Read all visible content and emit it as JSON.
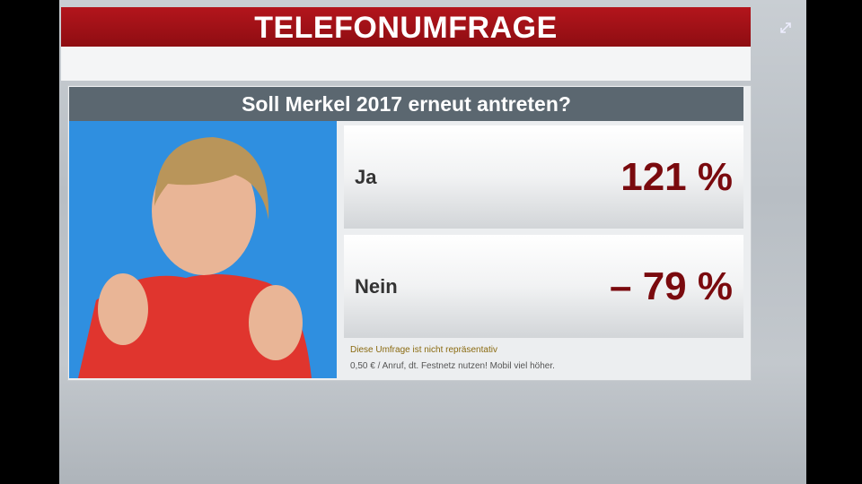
{
  "header": {
    "title": "TELEFONUMFRAGE"
  },
  "question": "Soll Merkel 2017 erneut antreten?",
  "rows": [
    {
      "label": "Ja",
      "value": "121 %"
    },
    {
      "label": "Nein",
      "value": "– 79 %"
    }
  ],
  "footer": [
    "Diese Umfrage ist nicht repräsentativ",
    "0,50 € / Anruf, dt. Festnetz nutzen! Mobil viel höher."
  ]
}
